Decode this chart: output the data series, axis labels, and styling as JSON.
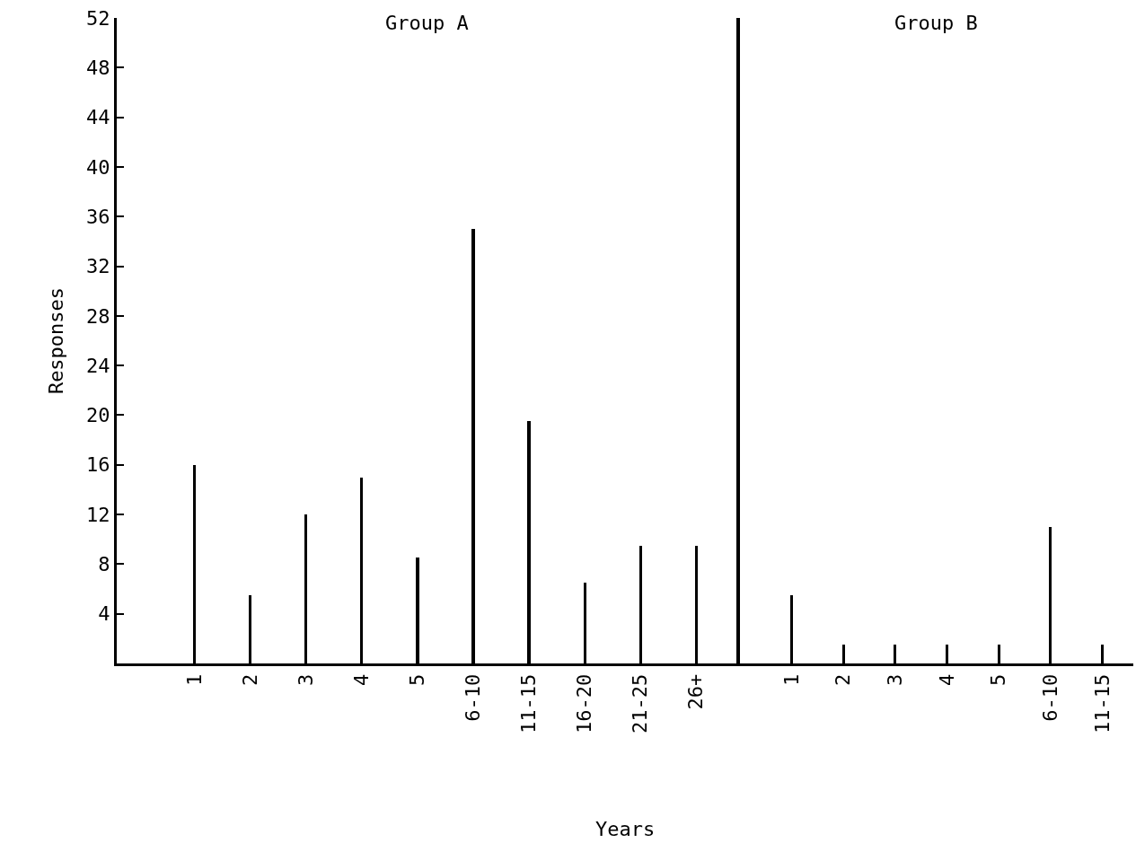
{
  "chart_data": [
    {
      "type": "bar",
      "title": "Group A",
      "xlabel": "Years",
      "ylabel": "Responses",
      "categories": [
        "1",
        "2",
        "3",
        "4",
        "5",
        "6-10",
        "11-15",
        "16-20",
        "21-25",
        "26+"
      ],
      "values": [
        16,
        5.5,
        12,
        15,
        8.5,
        35,
        19.5,
        6.5,
        9.5,
        9.5
      ],
      "color": "#000000",
      "ylim": [
        0,
        52
      ],
      "yticks": [
        4,
        8,
        12,
        16,
        20,
        24,
        28,
        32,
        36,
        40,
        44,
        48,
        52
      ],
      "grid": false
    },
    {
      "type": "bar",
      "title": "Group B",
      "categories": [
        "1",
        "2",
        "3",
        "4",
        "5",
        "6-10",
        "11-15"
      ],
      "values": [
        5.5,
        1.5,
        1.5,
        1.5,
        1.5,
        11,
        1.5
      ],
      "color": "#000000",
      "ylim": [
        0,
        52
      ],
      "yticks": [
        4,
        8,
        12,
        16,
        20,
        24,
        28,
        32,
        36,
        40,
        44,
        48,
        52
      ],
      "grid": false,
      "tick_labels": "x"
    }
  ]
}
